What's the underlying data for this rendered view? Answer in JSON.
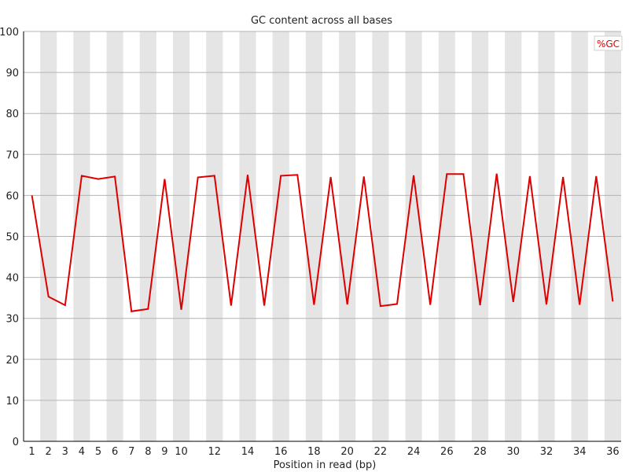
{
  "chart_data": {
    "type": "line",
    "title": "GC content across all bases",
    "xlabel": "Position in read (bp)",
    "ylabel": "",
    "ylim": [
      0,
      100
    ],
    "y_ticks": [
      0,
      10,
      20,
      30,
      40,
      50,
      60,
      70,
      80,
      90,
      100
    ],
    "x": [
      1,
      2,
      3,
      4,
      5,
      6,
      7,
      8,
      9,
      10,
      11,
      12,
      13,
      14,
      15,
      16,
      17,
      18,
      19,
      20,
      21,
      22,
      23,
      24,
      25,
      26,
      27,
      28,
      29,
      30,
      31,
      32,
      33,
      34,
      35,
      36
    ],
    "x_tick_labels": [
      "1",
      "2",
      "3",
      "4",
      "5",
      "6",
      "7",
      "8",
      "9",
      "10",
      "",
      "12",
      "",
      "14",
      "",
      "16",
      "",
      "18",
      "",
      "20",
      "",
      "22",
      "",
      "24",
      "",
      "26",
      "",
      "28",
      "",
      "30",
      "",
      "32",
      "",
      "34",
      "",
      "36"
    ],
    "series": [
      {
        "name": "%GC",
        "color": "#dd0000",
        "values": [
          60.0,
          35.3,
          33.2,
          64.8,
          64.0,
          64.6,
          31.7,
          32.3,
          64.0,
          32.1,
          64.4,
          64.8,
          33.1,
          65.0,
          33.1,
          64.8,
          65.0,
          33.3,
          64.5,
          33.4,
          64.6,
          33.0,
          33.5,
          64.9,
          33.3,
          65.2,
          65.2,
          33.2,
          65.3,
          34.0,
          64.7,
          33.4,
          64.5,
          33.3,
          64.7,
          34.1
        ]
      }
    ],
    "grid": true,
    "stripe_color": "#e5e5e5",
    "legend_position": "top-right"
  }
}
